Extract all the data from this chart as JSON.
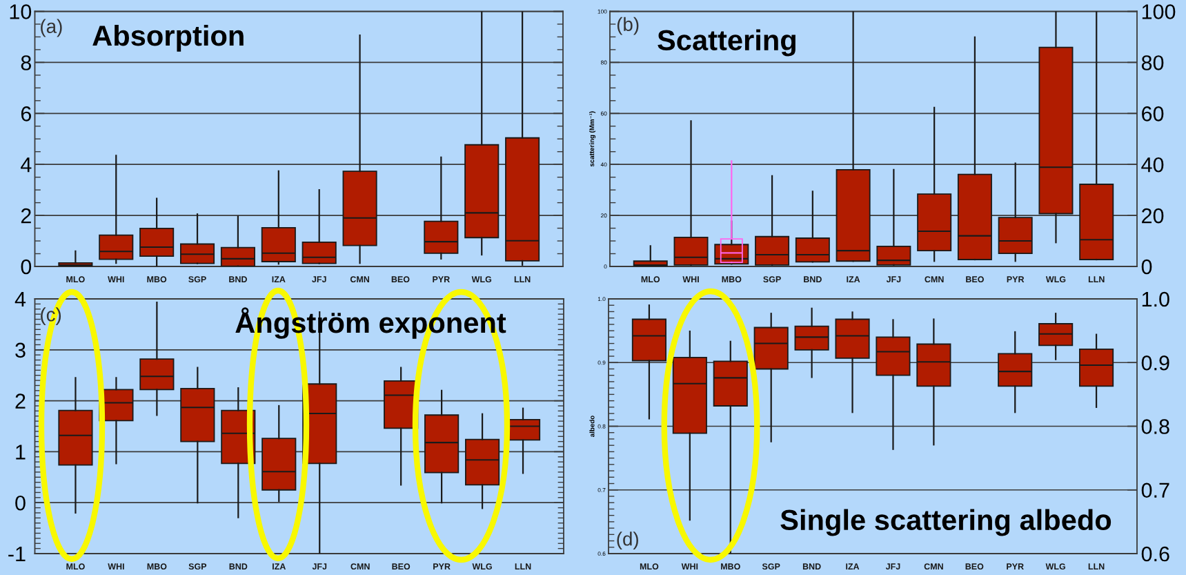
{
  "chart_data": [
    {
      "type": "box",
      "title": "Absorption",
      "annotations": [
        "(a)"
      ],
      "categories": [
        "MLO",
        "WHI",
        "MBO",
        "SGP",
        "BND",
        "IZA",
        "JFJ",
        "CMN",
        "BEO",
        "PYR",
        "WLG",
        "LLN"
      ],
      "series": [
        {
          "color": "#b11c00",
          "boxes": [
            {
              "low": 0,
              "q1": 0,
              "median": 0.05,
              "q3": 0.14,
              "high": 0.6
            },
            {
              "low": 0.13,
              "q1": 0.28,
              "median": 0.59,
              "q3": 1.23,
              "high": 4.35
            },
            {
              "low": 0,
              "q1": 0.4,
              "median": 0.76,
              "q3": 1.49,
              "high": 2.66
            },
            {
              "low": 0.12,
              "q1": 0.12,
              "median": 0.48,
              "q3": 0.88,
              "high": 2.05
            },
            {
              "low": 0.01,
              "q1": 0.01,
              "median": 0.3,
              "q3": 0.74,
              "high": 1.96
            },
            {
              "low": 0.1,
              "q1": 0.19,
              "median": 0.52,
              "q3": 1.52,
              "high": 3.74
            },
            {
              "low": 0.12,
              "q1": 0.12,
              "median": 0.36,
              "q3": 0.95,
              "high": 3.0
            },
            {
              "low": 0.13,
              "q1": 0.82,
              "median": 1.9,
              "q3": 3.73,
              "high": 9.06
            },
            null,
            {
              "low": 0.3,
              "q1": 0.52,
              "median": 0.97,
              "q3": 1.77,
              "high": 4.28
            },
            {
              "low": 0.46,
              "q1": 1.13,
              "median": 2.1,
              "q3": 4.77,
              "high": 10
            },
            {
              "low": 0.06,
              "q1": 0.22,
              "median": 1.01,
              "q3": 5.04,
              "high": 10
            }
          ]
        }
      ],
      "ylim": [
        0,
        10
      ],
      "yticks": [
        0,
        {
          "value": 0.5,
          "label": null
        },
        {
          "value": 1,
          "label": null
        },
        {
          "value": 1.5,
          "label": null
        },
        2,
        {
          "value": 2.5,
          "label": null
        },
        {
          "value": 3,
          "label": null
        },
        {
          "value": 3.5,
          "label": null
        },
        4,
        {
          "value": 4.5,
          "label": null
        },
        {
          "value": 5,
          "label": null
        },
        {
          "value": 5.5,
          "label": null
        },
        6,
        {
          "value": 6.5,
          "label": null
        },
        {
          "value": 7,
          "label": null
        },
        {
          "value": 7.5,
          "label": null
        },
        8,
        {
          "value": 8.5,
          "label": null
        },
        {
          "value": 9,
          "label": null
        },
        {
          "value": 9.5,
          "label": null
        },
        10
      ],
      "grid": "y"
    },
    {
      "type": "box",
      "title": "Scattering",
      "annotations": [
        "(b)"
      ],
      "ylabel": "scattering (Mm⁻¹)",
      "categories": [
        "MLO",
        "WHI",
        "MBO",
        "SGP",
        "BND",
        "IZA",
        "JFJ",
        "CMN",
        "BEO",
        "PYR",
        "WLG",
        "LLN"
      ],
      "series": [
        {
          "color": "#b11c00",
          "boxes": [
            {
              "low": 0,
              "q1": 0,
              "median": 0.5,
              "q3": 2.1,
              "high": 8
            },
            {
              "low": 0.6,
              "q1": 0.6,
              "median": 3.6,
              "q3": 11.4,
              "high": 57
            },
            {
              "low": 1,
              "q1": 1,
              "median": 3,
              "q3": 8.6,
              "high": 17.7
            },
            {
              "low": 0.6,
              "q1": 0.6,
              "median": 4.6,
              "q3": 11.7,
              "high": 35.5
            },
            {
              "low": 1.8,
              "q1": 1.8,
              "median": 4.6,
              "q3": 11.1,
              "high": 29.4
            },
            {
              "low": 2.1,
              "q1": 2.1,
              "median": 6.2,
              "q3": 37.9,
              "high": 100
            },
            {
              "low": 0.6,
              "q1": 0.6,
              "median": 2.4,
              "q3": 7.9,
              "high": 37.9
            },
            {
              "low": 2.1,
              "q1": 6.2,
              "median": 13.8,
              "q3": 28.4,
              "high": 62.3
            },
            {
              "low": 2.7,
              "q1": 2.7,
              "median": 12,
              "q3": 36.1,
              "high": 89.9
            },
            {
              "low": 2.1,
              "q1": 5.1,
              "median": 10,
              "q3": 19.2,
              "high": 40.4
            },
            {
              "low": 9.4,
              "q1": 20.7,
              "median": 38.9,
              "q3": 85.9,
              "high": 100
            },
            {
              "low": 2.7,
              "q1": 2.7,
              "median": 10.5,
              "q3": 32.2,
              "high": 100
            }
          ]
        },
        {
          "color": "#ff66ee",
          "boxes": [
            null,
            null,
            {
              "low": 1.6,
              "q1": 1.6,
              "median": 5.3,
              "q3": 10.8,
              "high": 41.3
            },
            null,
            null,
            null,
            null,
            null,
            null,
            null,
            null,
            null
          ]
        }
      ],
      "ylim": [
        0,
        100
      ],
      "yticks": [
        0,
        {
          "value": 5,
          "label": null
        },
        {
          "value": 10,
          "label": null
        },
        {
          "value": 15,
          "label": null
        },
        20,
        {
          "value": 25,
          "label": null
        },
        {
          "value": 30,
          "label": null
        },
        {
          "value": 35,
          "label": null
        },
        40,
        {
          "value": 45,
          "label": null
        },
        {
          "value": 50,
          "label": null
        },
        {
          "value": 55,
          "label": null
        },
        60,
        {
          "value": 65,
          "label": null
        },
        {
          "value": 70,
          "label": null
        },
        {
          "value": 75,
          "label": null
        },
        80,
        {
          "value": 85,
          "label": null
        },
        {
          "value": 90,
          "label": null
        },
        {
          "value": 95,
          "label": null
        },
        100
      ],
      "y2lim": [
        0,
        100
      ],
      "y2ticks": [
        0,
        20,
        40,
        60,
        80,
        100
      ],
      "grid": "y"
    },
    {
      "type": "box",
      "title": "Ångström exponent",
      "annotations": [
        "(c)"
      ],
      "categories": [
        "MLO",
        "WHI",
        "MBO",
        "SGP",
        "BND",
        "IZA",
        "JFJ",
        "CMN",
        "BEO",
        "PYR",
        "WLG",
        "LLN"
      ],
      "series": [
        {
          "color": "#b11c00",
          "boxes": [
            {
              "low": -0.2,
              "q1": 0.74,
              "median": 1.32,
              "q3": 1.81,
              "high": 2.45
            },
            {
              "low": 0.77,
              "q1": 1.61,
              "median": 1.96,
              "q3": 2.22,
              "high": 2.45
            },
            {
              "low": 1.72,
              "q1": 2.22,
              "median": 2.48,
              "q3": 2.82,
              "high": 3.93
            },
            {
              "low": 0,
              "q1": 1.2,
              "median": 1.87,
              "q3": 2.24,
              "high": 2.65
            },
            {
              "low": -0.29,
              "q1": 0.77,
              "median": 1.36,
              "q3": 1.81,
              "high": 2.25
            },
            {
              "low": 0.03,
              "q1": 0.25,
              "median": 0.61,
              "q3": 1.26,
              "high": 1.9
            },
            {
              "low": -1,
              "q1": 0.77,
              "median": 1.75,
              "q3": 2.33,
              "high": 3.74
            },
            null,
            {
              "low": 0.35,
              "q1": 1.46,
              "median": 2.11,
              "q3": 2.39,
              "high": 2.65
            },
            {
              "low": 0,
              "q1": 0.59,
              "median": 1.18,
              "q3": 1.72,
              "high": 2.2
            },
            {
              "low": -0.11,
              "q1": 0.35,
              "median": 0.84,
              "q3": 1.24,
              "high": 1.74
            },
            {
              "low": 0.58,
              "q1": 1.23,
              "median": 1.5,
              "q3": 1.63,
              "high": 1.85
            }
          ]
        }
      ],
      "ylim": [
        -1,
        4
      ],
      "yticks": [
        -1,
        {
          "value": -0.9,
          "label": null
        },
        {
          "value": -0.8,
          "label": null
        },
        {
          "value": -0.7,
          "label": null
        },
        {
          "value": -0.6,
          "label": null
        },
        {
          "value": -0.5,
          "label": null
        },
        {
          "value": -0.4,
          "label": null
        },
        {
          "value": -0.3,
          "label": null
        },
        {
          "value": -0.2,
          "label": null
        },
        {
          "value": -0.1,
          "label": null
        },
        0,
        {
          "value": 0.1,
          "label": null
        },
        {
          "value": 0.2,
          "label": null
        },
        {
          "value": 0.3,
          "label": null
        },
        {
          "value": 0.4,
          "label": null
        },
        {
          "value": 0.5,
          "label": null
        },
        {
          "value": 0.6,
          "label": null
        },
        {
          "value": 0.7,
          "label": null
        },
        {
          "value": 0.8,
          "label": null
        },
        {
          "value": 0.9,
          "label": null
        },
        1,
        {
          "value": 1.1,
          "label": null
        },
        {
          "value": 1.2,
          "label": null
        },
        {
          "value": 1.3,
          "label": null
        },
        {
          "value": 1.4,
          "label": null
        },
        {
          "value": 1.5,
          "label": null
        },
        {
          "value": 1.6,
          "label": null
        },
        {
          "value": 1.7,
          "label": null
        },
        {
          "value": 1.8,
          "label": null
        },
        {
          "value": 1.9,
          "label": null
        },
        2,
        {
          "value": 2.1,
          "label": null
        },
        {
          "value": 2.2,
          "label": null
        },
        {
          "value": 2.3,
          "label": null
        },
        {
          "value": 2.4,
          "label": null
        },
        {
          "value": 2.5,
          "label": null
        },
        {
          "value": 2.6,
          "label": null
        },
        {
          "value": 2.7,
          "label": null
        },
        {
          "value": 2.8,
          "label": null
        },
        {
          "value": 2.9,
          "label": null
        },
        3,
        {
          "value": 3.1,
          "label": null
        },
        {
          "value": 3.2,
          "label": null
        },
        {
          "value": 3.3,
          "label": null
        },
        {
          "value": 3.4,
          "label": null
        },
        {
          "value": 3.5,
          "label": null
        },
        {
          "value": 3.6,
          "label": null
        },
        {
          "value": 3.7,
          "label": null
        },
        {
          "value": 3.8,
          "label": null
        },
        {
          "value": 3.9,
          "label": null
        },
        4
      ],
      "grid": "y"
    },
    {
      "type": "box",
      "title": "Single scattering albedo",
      "annotations": [
        "(d)"
      ],
      "ylabel": "albedo",
      "categories": [
        "MLO",
        "WHI",
        "MBO",
        "SGP",
        "BND",
        "IZA",
        "JFJ",
        "CMN",
        "BEO",
        "PYR",
        "WLG",
        "LLN"
      ],
      "series": [
        {
          "color": "#b11c00",
          "boxes": [
            {
              "low": 0.812,
              "q1": 0.903,
              "median": 0.942,
              "q3": 0.968,
              "high": 0.99
            },
            {
              "low": 0.653,
              "q1": 0.789,
              "median": 0.867,
              "q3": 0.908,
              "high": 0.949
            },
            {
              "low": 0.6,
              "q1": 0.832,
              "median": 0.876,
              "q3": 0.902,
              "high": 0.933
            },
            {
              "low": 0.776,
              "q1": 0.89,
              "median": 0.93,
              "q3": 0.955,
              "high": 0.977
            },
            {
              "low": 0.877,
              "q1": 0.92,
              "median": 0.94,
              "q3": 0.957,
              "high": 0.985
            },
            {
              "low": 0.822,
              "q1": 0.907,
              "median": 0.942,
              "q3": 0.968,
              "high": 0.979
            },
            {
              "low": 0.764,
              "q1": 0.88,
              "median": 0.917,
              "q3": 0.94,
              "high": 0.967
            },
            {
              "low": 0.771,
              "q1": 0.863,
              "median": 0.901,
              "q3": 0.929,
              "high": 0.968
            },
            null,
            {
              "low": 0.822,
              "q1": 0.863,
              "median": 0.886,
              "q3": 0.914,
              "high": 0.948
            },
            {
              "low": 0.905,
              "q1": 0.927,
              "median": 0.945,
              "q3": 0.961,
              "high": 0.977
            },
            {
              "low": 0.83,
              "q1": 0.863,
              "median": 0.896,
              "q3": 0.921,
              "high": 0.944
            }
          ]
        }
      ],
      "ylim": [
        0.6,
        1
      ],
      "yticks": [
        0.6,
        {
          "value": 0.61,
          "label": null
        },
        {
          "value": 0.62,
          "label": null
        },
        {
          "value": 0.63,
          "label": null
        },
        {
          "value": 0.64,
          "label": null
        },
        {
          "value": 0.65,
          "label": null
        },
        {
          "value": 0.66,
          "label": null
        },
        {
          "value": 0.67,
          "label": null
        },
        {
          "value": 0.68,
          "label": null
        },
        {
          "value": 0.69,
          "label": null
        },
        0.7,
        {
          "value": 0.71,
          "label": null
        },
        {
          "value": 0.72,
          "label": null
        },
        {
          "value": 0.73,
          "label": null
        },
        {
          "value": 0.74,
          "label": null
        },
        {
          "value": 0.75,
          "label": null
        },
        {
          "value": 0.76,
          "label": null
        },
        {
          "value": 0.77,
          "label": null
        },
        {
          "value": 0.78,
          "label": null
        },
        {
          "value": 0.79,
          "label": null
        },
        0.8,
        {
          "value": 0.81,
          "label": null
        },
        {
          "value": 0.82,
          "label": null
        },
        {
          "value": 0.83,
          "label": null
        },
        {
          "value": 0.84,
          "label": null
        },
        {
          "value": 0.85,
          "label": null
        },
        {
          "value": 0.86,
          "label": null
        },
        {
          "value": 0.87,
          "label": null
        },
        {
          "value": 0.88,
          "label": null
        },
        {
          "value": 0.89,
          "label": null
        },
        0.9,
        {
          "value": 0.91,
          "label": null
        },
        {
          "value": 0.92,
          "label": null
        },
        {
          "value": 0.93,
          "label": null
        },
        {
          "value": 0.94,
          "label": null
        },
        {
          "value": 0.95,
          "label": null
        },
        {
          "value": 0.96,
          "label": null
        },
        {
          "value": 0.97,
          "label": null
        },
        {
          "value": 0.98,
          "label": null
        },
        {
          "value": 0.99,
          "label": null
        },
        {
          "value": 1,
          "label": "1.0"
        }
      ],
      "y2lim": [
        0.6,
        1
      ],
      "y2ticks": [
        0.6,
        0.7,
        0.8,
        0.9,
        {
          "value": 1,
          "label": "1.0"
        }
      ],
      "grid": "y"
    }
  ]
}
